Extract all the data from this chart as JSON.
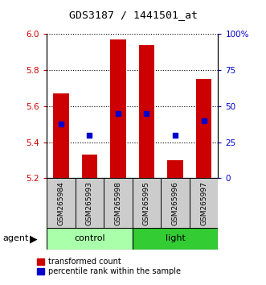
{
  "title": "GDS3187 / 1441501_at",
  "samples": [
    "GSM265984",
    "GSM265993",
    "GSM265998",
    "GSM265995",
    "GSM265996",
    "GSM265997"
  ],
  "groups": [
    "control",
    "control",
    "control",
    "light",
    "light",
    "light"
  ],
  "bar_bottom": 5.2,
  "bar_tops": [
    5.67,
    5.33,
    5.97,
    5.94,
    5.3,
    5.75
  ],
  "percentile_values": [
    5.5,
    5.44,
    5.56,
    5.56,
    5.44,
    5.52
  ],
  "ylim_left": [
    5.2,
    6.0
  ],
  "ylim_right": [
    0,
    100
  ],
  "yticks_left": [
    5.2,
    5.4,
    5.6,
    5.8,
    6.0
  ],
  "yticks_right": [
    0,
    25,
    50,
    75,
    100
  ],
  "yticklabels_right": [
    "0",
    "25",
    "50",
    "75",
    "100%"
  ],
  "bar_color": "#cc0000",
  "percentile_color": "#0000cc",
  "control_color": "#aaffaa",
  "light_color": "#33cc33",
  "sample_box_color": "#cccccc",
  "agent_label": "agent",
  "legend_bar_label": "transformed count",
  "legend_percentile_label": "percentile rank within the sample",
  "left_tick_color": "#cc0000",
  "right_tick_color": "#0000cc",
  "bar_width": 0.55,
  "fig_width": 3.31,
  "fig_height": 3.54,
  "fig_dpi": 100
}
